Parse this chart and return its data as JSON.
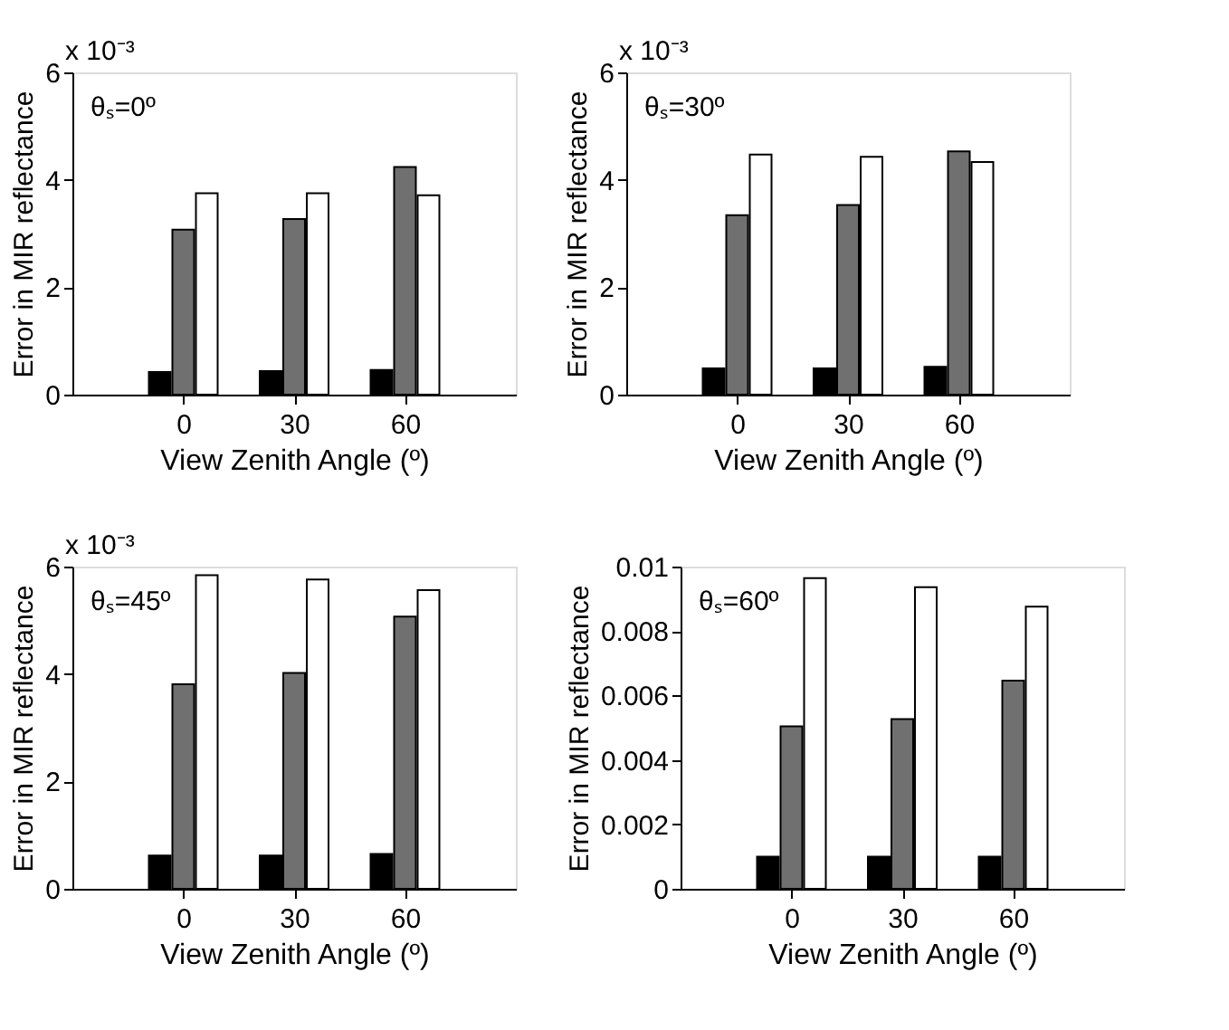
{
  "chart_data": [
    {
      "type": "bar",
      "x": [
        0,
        30,
        60
      ],
      "xlim": [
        -30,
        90
      ],
      "xticks": [
        0,
        30,
        60
      ],
      "ylim": [
        0,
        6
      ],
      "yticks": [
        0,
        2,
        4,
        6
      ],
      "xlabel": "View Zenith Angle (º)",
      "ylabel": "Error in MIR reflectance",
      "annotations": [
        "θₛ=0º",
        "x 10⁻³"
      ],
      "grid": false,
      "legend": false,
      "series": [
        {
          "color": "#000000",
          "values": [
            0.42,
            0.44,
            0.46
          ]
        },
        {
          "color": "#707070",
          "values": [
            3.07,
            3.27,
            4.24
          ]
        },
        {
          "color": "#ffffff",
          "values": [
            3.75,
            3.75,
            3.71
          ]
        }
      ]
    },
    {
      "type": "bar",
      "x": [
        0,
        30,
        60
      ],
      "xlim": [
        -30,
        90
      ],
      "xticks": [
        0,
        30,
        60
      ],
      "ylim": [
        0,
        6
      ],
      "yticks": [
        0,
        2,
        4,
        6
      ],
      "xlabel": "View Zenith Angle (º)",
      "ylabel": "Error in MIR reflectance",
      "annotations": [
        "θₛ=30º",
        "x 10⁻³"
      ],
      "grid": false,
      "legend": false,
      "series": [
        {
          "color": "#000000",
          "values": [
            0.49,
            0.49,
            0.52
          ]
        },
        {
          "color": "#707070",
          "values": [
            3.34,
            3.53,
            4.53
          ]
        },
        {
          "color": "#ffffff",
          "values": [
            4.47,
            4.43,
            4.33
          ]
        }
      ]
    },
    {
      "type": "bar",
      "x": [
        0,
        30,
        60
      ],
      "xlim": [
        -30,
        90
      ],
      "xticks": [
        0,
        30,
        60
      ],
      "ylim": [
        0,
        6
      ],
      "yticks": [
        0,
        2,
        4,
        6
      ],
      "xlabel": "View Zenith Angle (º)",
      "ylabel": "Error in MIR reflectance",
      "annotations": [
        "θₛ=45º",
        "x 10⁻³"
      ],
      "grid": false,
      "legend": false,
      "series": [
        {
          "color": "#000000",
          "values": [
            0.62,
            0.62,
            0.65
          ]
        },
        {
          "color": "#707070",
          "values": [
            3.81,
            4.02,
            5.07
          ]
        },
        {
          "color": "#ffffff",
          "values": [
            5.84,
            5.76,
            5.56
          ]
        }
      ]
    },
    {
      "type": "bar",
      "x": [
        0,
        30,
        60
      ],
      "xlim": [
        -30,
        90
      ],
      "xticks": [
        0,
        30,
        60
      ],
      "ylim": [
        0,
        0.01
      ],
      "yticks": [
        0,
        0.002,
        0.004,
        0.006,
        0.008,
        0.01
      ],
      "xlabel": "View Zenith Angle (º)",
      "ylabel": "Error in MIR reflectance",
      "annotations": [
        "θₛ=60º"
      ],
      "grid": false,
      "legend": false,
      "series": [
        {
          "color": "#000000",
          "values": [
            0.001,
            0.001,
            0.001
          ]
        },
        {
          "color": "#707070",
          "values": [
            0.00504,
            0.00527,
            0.00646
          ]
        },
        {
          "color": "#ffffff",
          "values": [
            0.00964,
            0.00936,
            0.00876
          ]
        }
      ]
    }
  ]
}
